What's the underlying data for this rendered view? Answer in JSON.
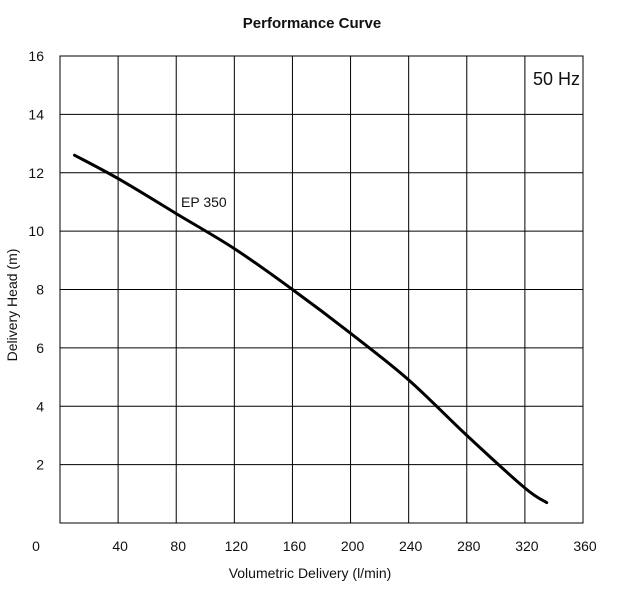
{
  "chart_data": {
    "type": "line",
    "title": "Performance Curve",
    "xlabel": "Volumetric Delivery (l/min)",
    "ylabel": "Delivery Head (m)",
    "xlim": [
      0,
      360
    ],
    "ylim": [
      0,
      16
    ],
    "x_ticks": [
      0,
      40,
      80,
      120,
      160,
      200,
      240,
      280,
      320,
      360
    ],
    "y_ticks": [
      2,
      4,
      6,
      8,
      10,
      12,
      14,
      16
    ],
    "grid": true,
    "frequency_label": "50 Hz",
    "series": [
      {
        "name": "EP 350",
        "x": [
          10,
          40,
          80,
          120,
          160,
          200,
          240,
          280,
          320,
          335
        ],
        "y": [
          12.6,
          11.8,
          10.6,
          9.4,
          8.0,
          6.5,
          4.9,
          3.0,
          1.2,
          0.7
        ]
      }
    ]
  }
}
